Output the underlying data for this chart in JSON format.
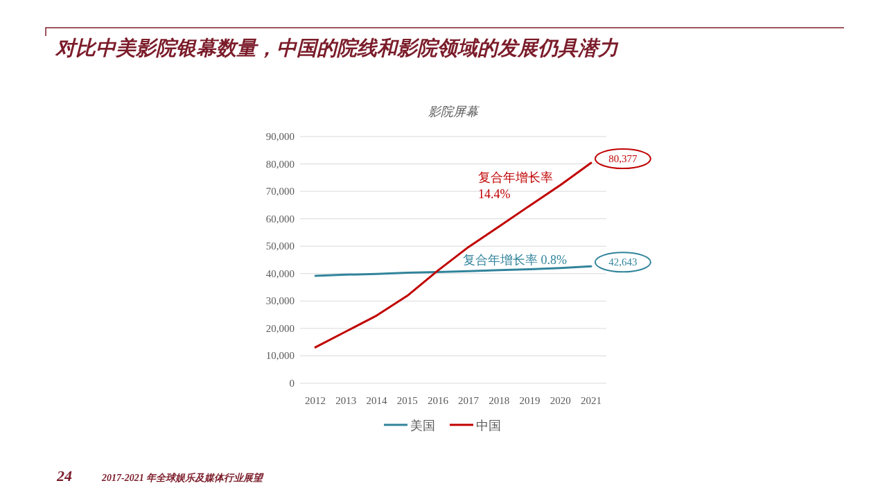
{
  "chart_data": {
    "type": "line",
    "title": "对比中美影院银幕数量，中国的院线和影院领域的发展仍具潜力",
    "subtitle": "影院屏幕",
    "categories": [
      "2012",
      "2013",
      "2014",
      "2015",
      "2016",
      "2017",
      "2018",
      "2019",
      "2020",
      "2021"
    ],
    "series": [
      {
        "name": "美国",
        "color": "#31849b",
        "values": [
          39200,
          39600,
          39900,
          40300,
          40600,
          40900,
          41300,
          41600,
          42000,
          42643
        ],
        "value_labels": [
          null,
          null,
          null,
          null,
          null,
          null,
          null,
          null,
          null,
          "42,643"
        ]
      },
      {
        "name": "中国",
        "color": "#c00000",
        "values": [
          13100,
          18900,
          24700,
          31900,
          41100,
          49700,
          57200,
          64800,
          72300,
          80377
        ],
        "value_labels": [
          null,
          null,
          null,
          null,
          null,
          null,
          null,
          null,
          null,
          "80,377"
        ]
      }
    ],
    "ylim": [
      0,
      90000
    ],
    "yticks": [
      {
        "value": 0,
        "label": "0"
      },
      {
        "value": 10000,
        "label": "10,000"
      },
      {
        "value": 20000,
        "label": "20,000"
      },
      {
        "value": 30000,
        "label": "30,000"
      },
      {
        "value": 40000,
        "label": "40,000"
      },
      {
        "value": 50000,
        "label": "50,000"
      },
      {
        "value": 60000,
        "label": "60,000"
      },
      {
        "value": 70000,
        "label": "70,000"
      },
      {
        "value": 80000,
        "label": "80,000"
      },
      {
        "value": 90000,
        "label": "90,000"
      }
    ],
    "grid": "y",
    "legend": "bottom",
    "annotations": [
      "复合年增长率\n14.4%",
      "复合年增长率 0.8%",
      "24",
      "2017-2021 年全球娱乐及媒体行业展望"
    ]
  }
}
